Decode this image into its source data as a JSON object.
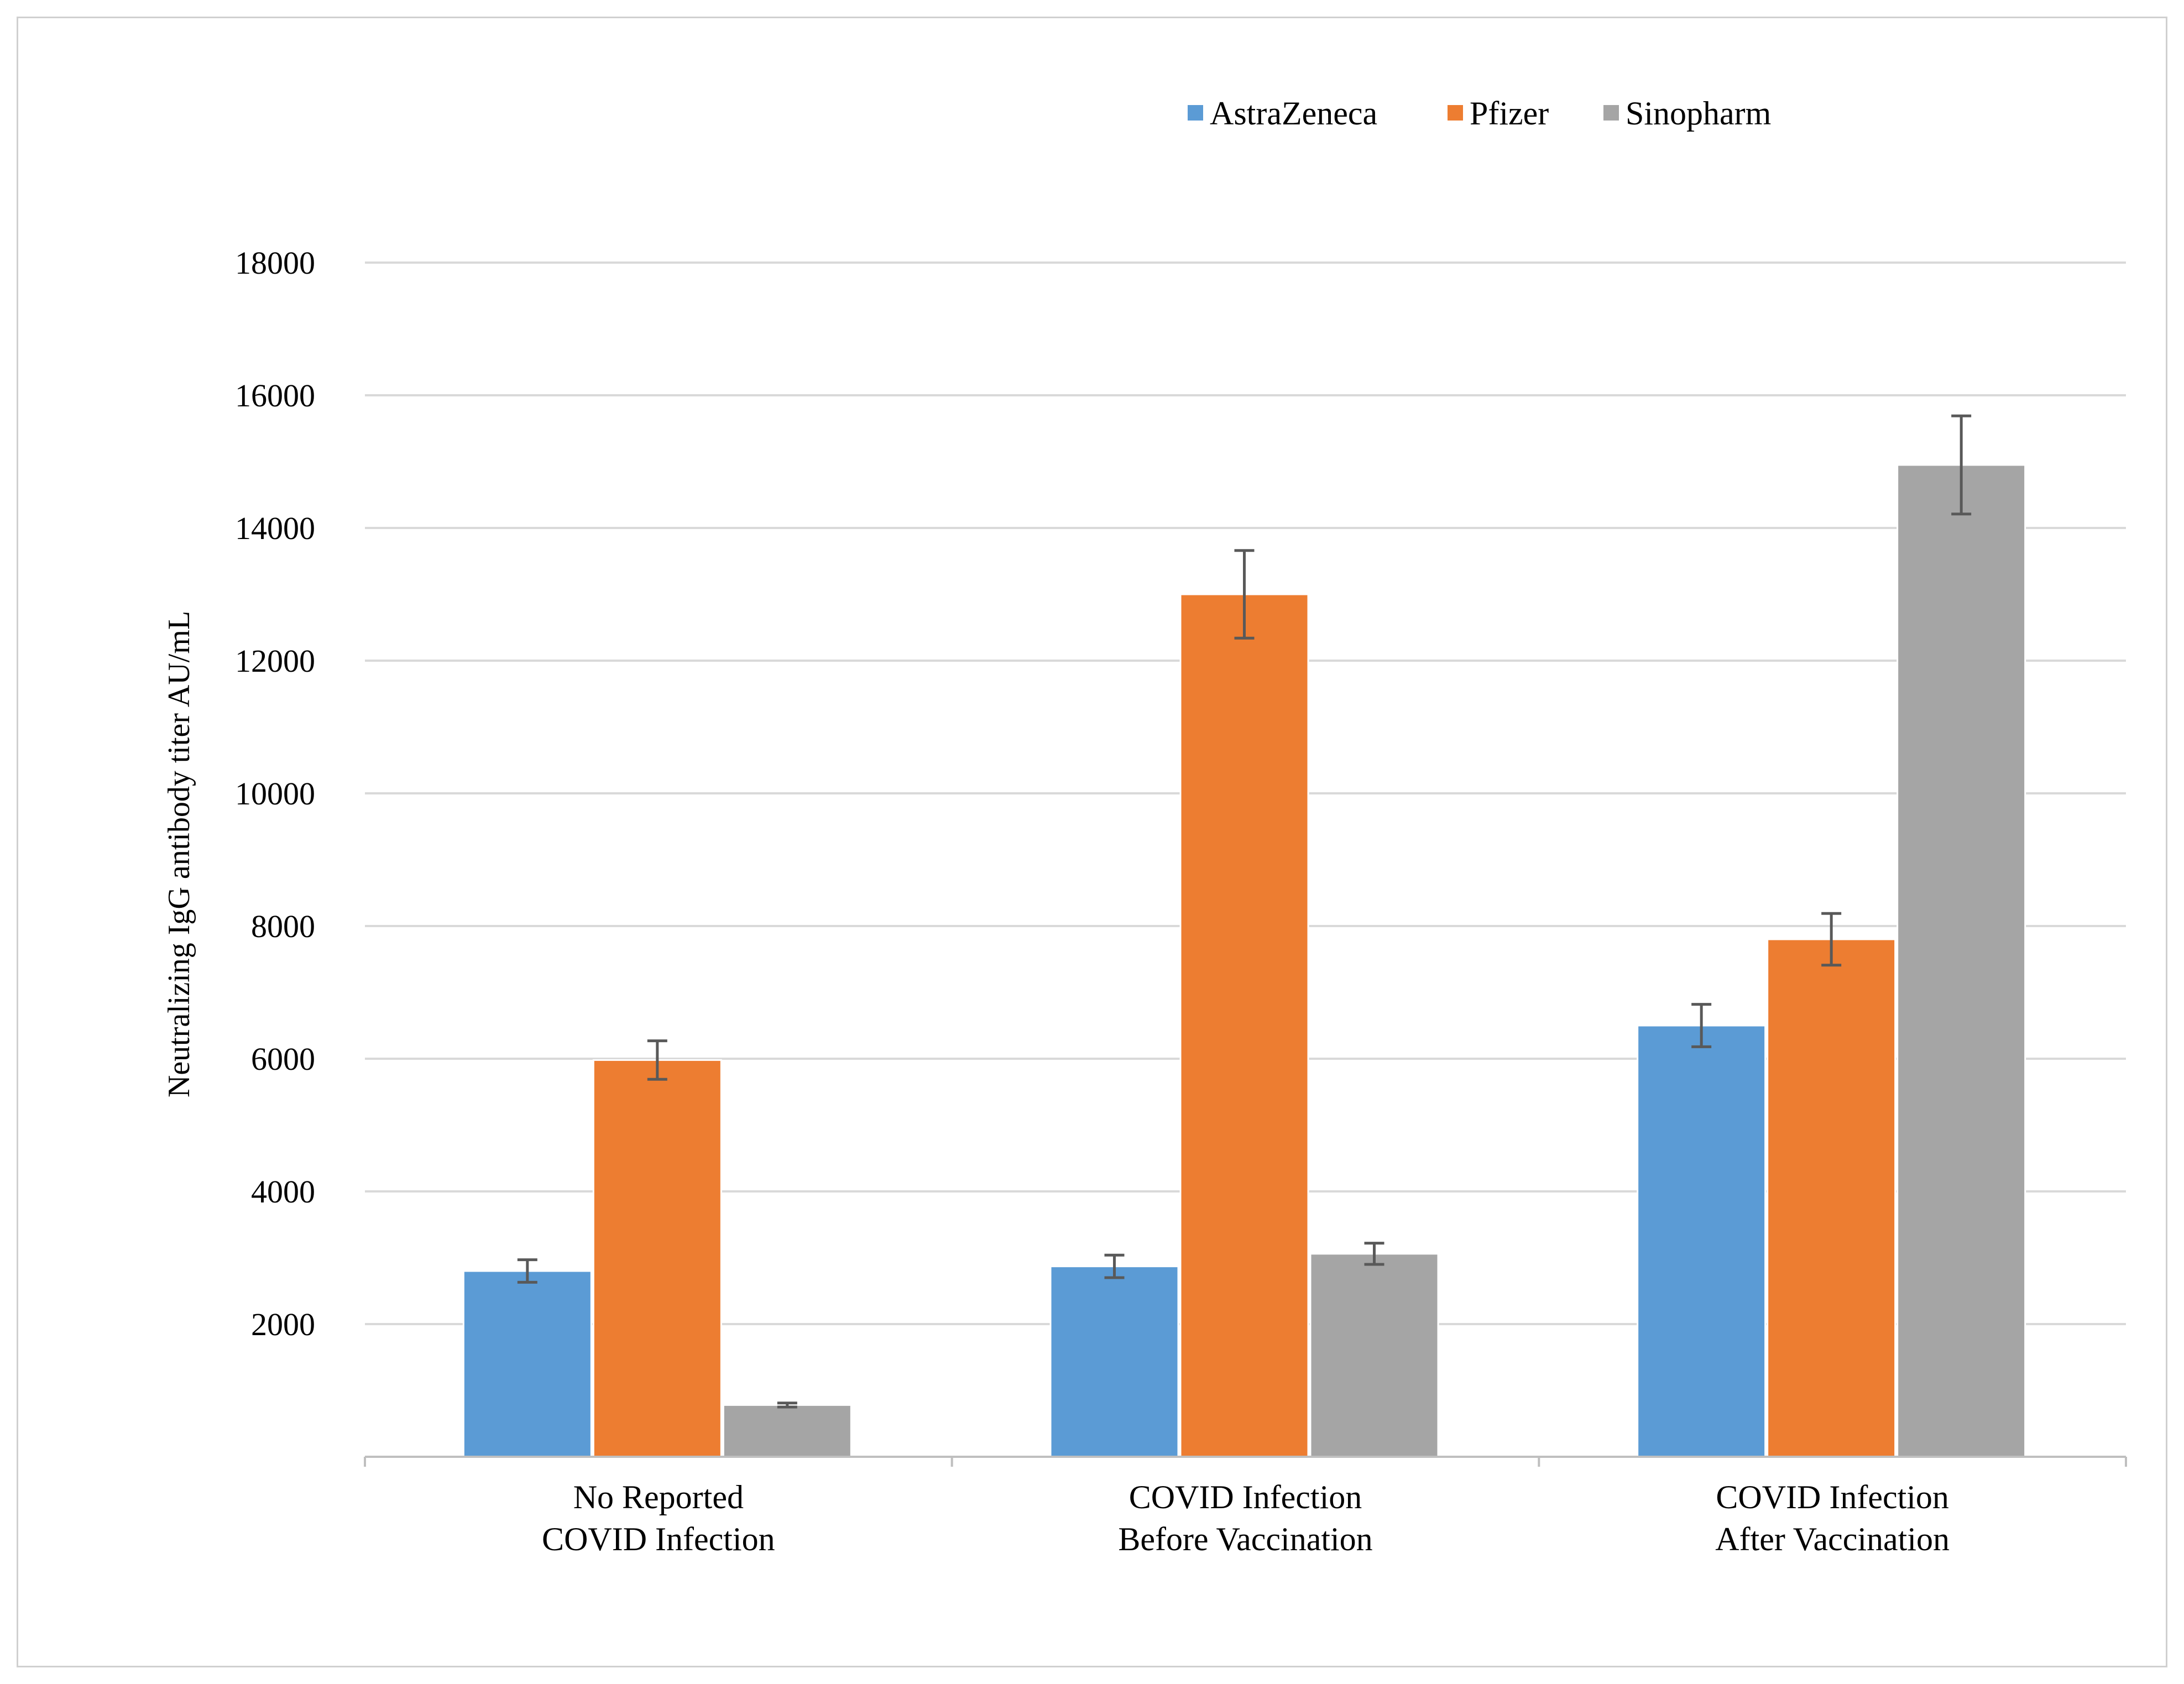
{
  "chart_data": {
    "type": "bar",
    "title": "",
    "xlabel": "",
    "ylabel": "Neutralizing IgG antibody titer AU/mL",
    "ylim": [
      0,
      18000
    ],
    "yticks": [
      2000,
      4000,
      6000,
      8000,
      10000,
      12000,
      14000,
      16000,
      18000
    ],
    "grid": true,
    "legend_position": "top-right",
    "categories": [
      [
        "No Reported",
        "COVID Infection"
      ],
      [
        "COVID Infection",
        "Before Vaccination"
      ],
      [
        "COVID Infection",
        "After Vaccination"
      ]
    ],
    "series": [
      {
        "name": "AstraZeneca",
        "color": "#5b9bd5",
        "values": [
          2800,
          2870,
          6500
        ],
        "errors": [
          170,
          170,
          320
        ]
      },
      {
        "name": "Pfizer",
        "color": "#ed7d31",
        "values": [
          5980,
          13000,
          7800
        ],
        "errors": [
          290,
          660,
          390
        ]
      },
      {
        "name": "Sinopharm",
        "color": "#a5a5a5",
        "values": [
          780,
          3060,
          14950
        ],
        "errors": [
          30,
          160,
          740
        ]
      }
    ],
    "colors": {
      "grid": "#d9d9d9",
      "axis": "#bfbfbf",
      "error_bar": "#595959"
    }
  }
}
